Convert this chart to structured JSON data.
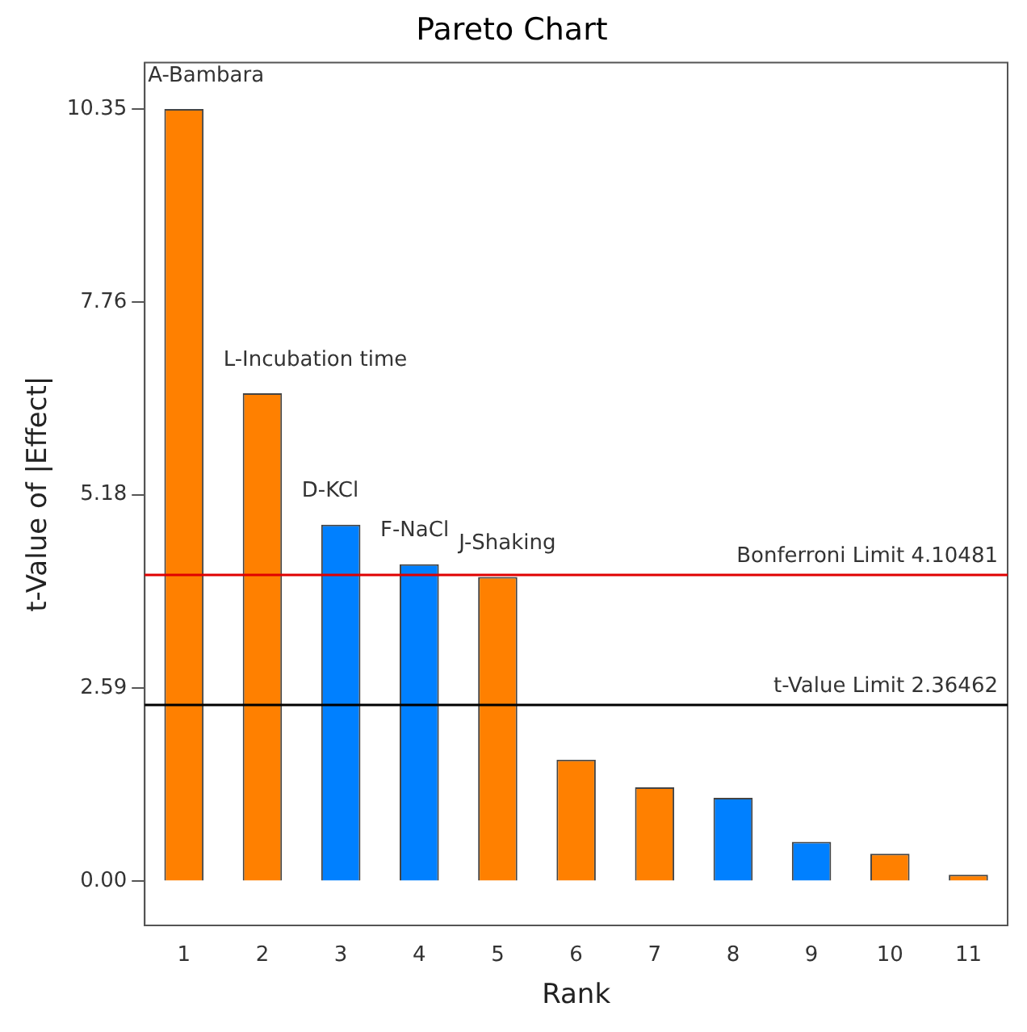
{
  "chart_data": {
    "type": "bar",
    "title": "Pareto Chart",
    "xlabel": "Rank",
    "ylabel": "t-Value of |Effect|",
    "categories": [
      "1",
      "2",
      "3",
      "4",
      "5",
      "6",
      "7",
      "8",
      "9",
      "10",
      "11"
    ],
    "values": [
      10.35,
      6.54,
      4.78,
      4.25,
      4.08,
      1.63,
      1.26,
      1.12,
      0.53,
      0.37,
      0.09
    ],
    "colors": [
      "#ff8000",
      "#ff8000",
      "#0080ff",
      "#0080ff",
      "#ff8000",
      "#ff8000",
      "#ff8000",
      "#0080ff",
      "#0080ff",
      "#ff8000",
      "#ff8000"
    ],
    "ylim": [
      -0.59,
      10.97
    ],
    "yticks": [
      {
        "value": 0,
        "label": "0.00"
      },
      2.59,
      5.18,
      7.76,
      10.35
    ],
    "ref_lines": [
      {
        "axis": "y",
        "value": 4.10481,
        "label": "Bonferroni Limit 4.10481",
        "color": "#e00000"
      },
      {
        "axis": "y",
        "value": 2.36462,
        "label": "t-Value Limit 2.36462",
        "color": "#000000"
      }
    ],
    "annotations": [
      {
        "text": "A-Bambara",
        "x": "1",
        "y": 10.35
      },
      {
        "text": "L-Incubation time",
        "x": "2",
        "y": 6.54
      },
      {
        "text": "D-KCl",
        "x": "3",
        "y": 4.78
      },
      {
        "text": "F-NaCl",
        "x": "4",
        "y": 4.25
      },
      {
        "text": "J-Shaking",
        "x": "5",
        "y": 4.08
      }
    ],
    "grid": false,
    "legend": false
  }
}
